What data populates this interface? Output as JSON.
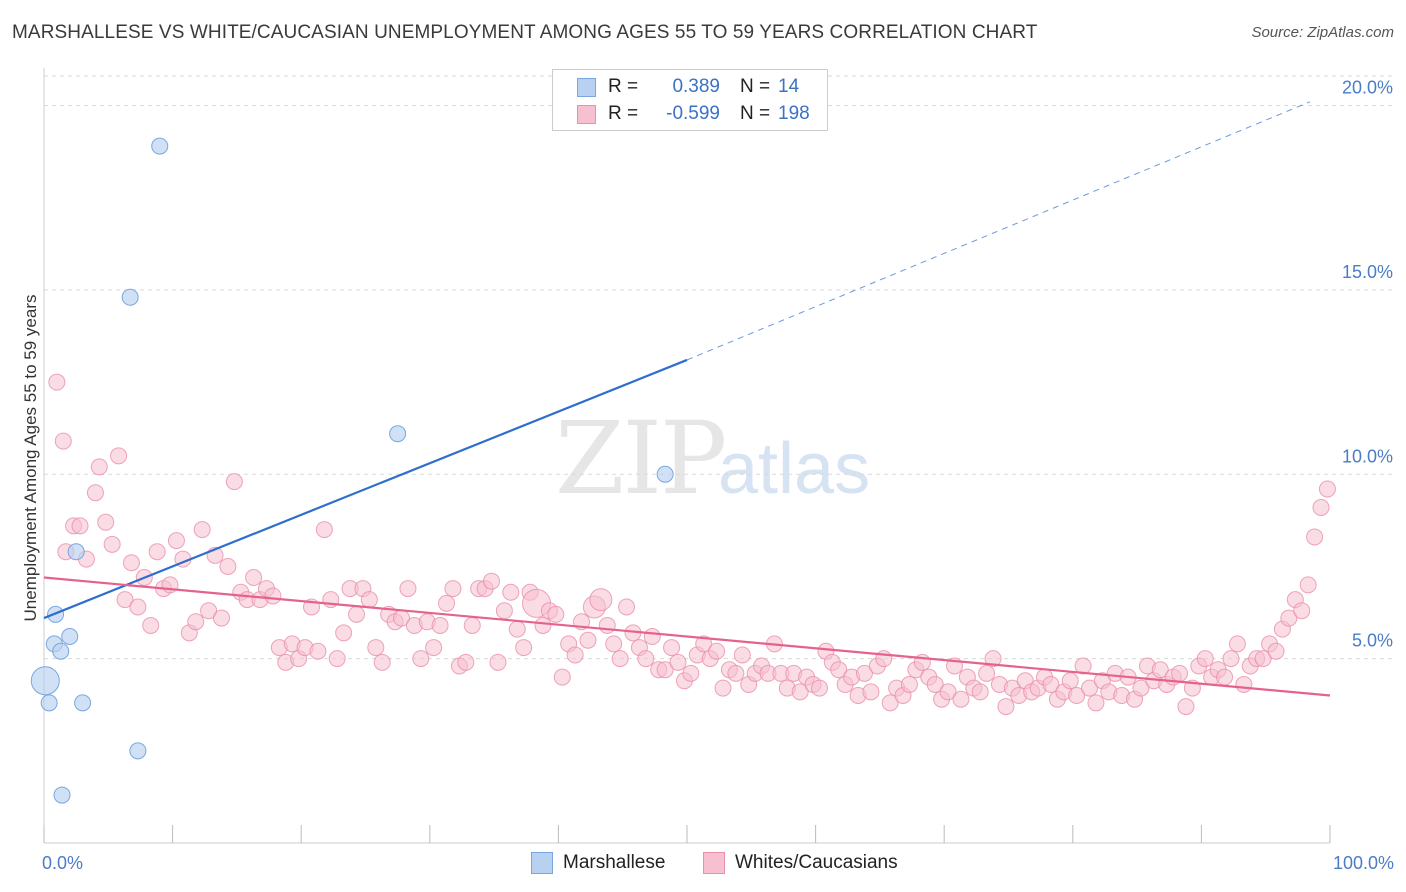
{
  "title": "MARSHALLESE VS WHITE/CAUCASIAN UNEMPLOYMENT AMONG AGES 55 TO 59 YEARS CORRELATION CHART",
  "source": "Source: ZipAtlas.com",
  "watermark": {
    "zip": "ZIP",
    "atlas": "atlas"
  },
  "legend": {
    "rows": [
      {
        "r_label": "R =",
        "r_value": "0.389",
        "n_label": "N =",
        "n_value": "14"
      },
      {
        "r_label": "R =",
        "r_value": "-0.599",
        "n_label": "N =",
        "n_value": "198"
      }
    ]
  },
  "bottom_legend": [
    "Marshallese",
    "Whites/Caucasians"
  ],
  "colors": {
    "blue_fill": "#b9d1f0",
    "blue_stroke": "#7aa6e0",
    "blue_line": "#2f6fcc",
    "pink_fill": "#f6c0d0",
    "pink_stroke": "#ea8fab",
    "pink_line": "#e5628d",
    "grid": "#d9d9d9",
    "tick_text": "#4a7cc7"
  },
  "chart_data": {
    "type": "scatter",
    "title": "MARSHALLESE VS WHITE/CAUCASIAN UNEMPLOYMENT AMONG AGES 55 TO 59 YEARS CORRELATION CHART",
    "xlabel": "",
    "ylabel": "Unemployment Among Ages 55 to 59 years",
    "xlim": [
      0,
      100
    ],
    "ylim": [
      0,
      20.8
    ],
    "x_tick_labels": [
      "0.0%",
      "100.0%"
    ],
    "y_ticks": [
      5,
      10,
      15,
      20
    ],
    "y_tick_labels": [
      "5.0%",
      "10.0%",
      "15.0%",
      "20.0%"
    ],
    "grid": "horizontal dashed",
    "legend_position": "top-center",
    "series": [
      {
        "name": "Marshallese",
        "r": 0.389,
        "n": 14,
        "trend": {
          "x0": 0,
          "y0": 6.1,
          "x1": 50,
          "y1": 13.1,
          "dashed_to_x": 100,
          "dashed_to_y": 20.1
        },
        "points": [
          [
            0.1,
            4.4,
            14
          ],
          [
            0.4,
            3.8,
            8
          ],
          [
            0.9,
            6.2,
            8
          ],
          [
            0.8,
            5.4,
            8
          ],
          [
            1.3,
            5.2,
            8
          ],
          [
            2.0,
            5.6,
            8
          ],
          [
            1.4,
            1.3,
            8
          ],
          [
            2.5,
            7.9,
            8
          ],
          [
            3.0,
            3.8,
            8
          ],
          [
            7.3,
            2.5,
            8
          ],
          [
            6.7,
            14.8,
            8
          ],
          [
            9.0,
            18.9,
            8
          ],
          [
            27.5,
            11.1,
            8
          ],
          [
            48.3,
            10.0,
            8
          ]
        ]
      },
      {
        "name": "Whites/Caucasians",
        "r": -0.599,
        "n": 198,
        "trend": {
          "x0": 0,
          "y0": 7.2,
          "x1": 100,
          "y1": 4.0
        },
        "points": [
          [
            1.0,
            12.5,
            8
          ],
          [
            1.5,
            10.9,
            8
          ],
          [
            1.7,
            7.9,
            8
          ],
          [
            2.3,
            8.6,
            8
          ],
          [
            2.8,
            8.6,
            8
          ],
          [
            3.3,
            7.7,
            8
          ],
          [
            4.0,
            9.5,
            8
          ],
          [
            4.3,
            10.2,
            8
          ],
          [
            4.8,
            8.7,
            8
          ],
          [
            5.3,
            8.1,
            8
          ],
          [
            5.8,
            10.5,
            8
          ],
          [
            6.3,
            6.6,
            8
          ],
          [
            6.8,
            7.6,
            8
          ],
          [
            7.3,
            6.4,
            8
          ],
          [
            7.8,
            7.2,
            8
          ],
          [
            8.3,
            5.9,
            8
          ],
          [
            8.8,
            7.9,
            8
          ],
          [
            9.3,
            6.9,
            8
          ],
          [
            9.8,
            7.0,
            8
          ],
          [
            10.3,
            8.2,
            8
          ],
          [
            10.8,
            7.7,
            8
          ],
          [
            11.3,
            5.7,
            8
          ],
          [
            11.8,
            6.0,
            8
          ],
          [
            12.3,
            8.5,
            8
          ],
          [
            12.8,
            6.3,
            8
          ],
          [
            13.3,
            7.8,
            8
          ],
          [
            13.8,
            6.1,
            8
          ],
          [
            14.3,
            7.5,
            8
          ],
          [
            14.8,
            9.8,
            8
          ],
          [
            15.3,
            6.8,
            8
          ],
          [
            15.8,
            6.6,
            8
          ],
          [
            16.3,
            7.2,
            8
          ],
          [
            16.8,
            6.6,
            8
          ],
          [
            17.3,
            6.9,
            8
          ],
          [
            17.8,
            6.7,
            8
          ],
          [
            18.3,
            5.3,
            8
          ],
          [
            18.8,
            4.9,
            8
          ],
          [
            19.3,
            5.4,
            8
          ],
          [
            19.8,
            5.0,
            8
          ],
          [
            20.3,
            5.3,
            8
          ],
          [
            20.8,
            6.4,
            8
          ],
          [
            21.3,
            5.2,
            8
          ],
          [
            21.8,
            8.5,
            8
          ],
          [
            22.3,
            6.6,
            8
          ],
          [
            22.8,
            5.0,
            8
          ],
          [
            23.3,
            5.7,
            8
          ],
          [
            23.8,
            6.9,
            8
          ],
          [
            24.3,
            6.2,
            8
          ],
          [
            24.8,
            6.9,
            8
          ],
          [
            25.3,
            6.6,
            8
          ],
          [
            25.8,
            5.3,
            8
          ],
          [
            26.3,
            4.9,
            8
          ],
          [
            26.8,
            6.2,
            8
          ],
          [
            27.3,
            6.0,
            8
          ],
          [
            27.8,
            6.1,
            8
          ],
          [
            28.3,
            6.9,
            8
          ],
          [
            28.8,
            5.9,
            8
          ],
          [
            29.3,
            5.0,
            8
          ],
          [
            29.8,
            6.0,
            8
          ],
          [
            30.3,
            5.3,
            8
          ],
          [
            30.8,
            5.9,
            8
          ],
          [
            31.3,
            6.5,
            8
          ],
          [
            31.8,
            6.9,
            8
          ],
          [
            32.3,
            4.8,
            8
          ],
          [
            32.8,
            4.9,
            8
          ],
          [
            33.3,
            5.9,
            8
          ],
          [
            33.8,
            6.9,
            8
          ],
          [
            34.3,
            6.9,
            8
          ],
          [
            34.8,
            7.1,
            8
          ],
          [
            35.3,
            4.9,
            8
          ],
          [
            35.8,
            6.3,
            8
          ],
          [
            36.3,
            6.8,
            8
          ],
          [
            36.8,
            5.8,
            8
          ],
          [
            37.3,
            5.3,
            8
          ],
          [
            37.8,
            6.8,
            8
          ],
          [
            38.3,
            6.5,
            14
          ],
          [
            38.8,
            5.9,
            8
          ],
          [
            39.3,
            6.3,
            8
          ],
          [
            39.8,
            6.2,
            8
          ],
          [
            40.3,
            4.5,
            8
          ],
          [
            40.8,
            5.4,
            8
          ],
          [
            41.3,
            5.1,
            8
          ],
          [
            41.8,
            6.0,
            8
          ],
          [
            42.3,
            5.5,
            8
          ],
          [
            42.8,
            6.4,
            11
          ],
          [
            43.3,
            6.6,
            11
          ],
          [
            43.8,
            5.9,
            8
          ],
          [
            44.3,
            5.4,
            8
          ],
          [
            44.8,
            5.0,
            8
          ],
          [
            45.3,
            6.4,
            8
          ],
          [
            45.8,
            5.7,
            8
          ],
          [
            46.3,
            5.3,
            8
          ],
          [
            46.8,
            5.0,
            8
          ],
          [
            47.3,
            5.6,
            8
          ],
          [
            47.8,
            4.7,
            8
          ],
          [
            48.3,
            4.7,
            8
          ],
          [
            48.8,
            5.3,
            8
          ],
          [
            49.3,
            4.9,
            8
          ],
          [
            49.8,
            4.4,
            8
          ],
          [
            50.3,
            4.6,
            8
          ],
          [
            50.8,
            5.1,
            8
          ],
          [
            51.3,
            5.4,
            8
          ],
          [
            51.8,
            5.0,
            8
          ],
          [
            52.3,
            5.2,
            8
          ],
          [
            52.8,
            4.2,
            8
          ],
          [
            53.3,
            4.7,
            8
          ],
          [
            53.8,
            4.6,
            8
          ],
          [
            54.3,
            5.1,
            8
          ],
          [
            54.8,
            4.3,
            8
          ],
          [
            55.3,
            4.6,
            8
          ],
          [
            55.8,
            4.8,
            8
          ],
          [
            56.3,
            4.6,
            8
          ],
          [
            56.8,
            5.4,
            8
          ],
          [
            57.3,
            4.6,
            8
          ],
          [
            57.8,
            4.2,
            8
          ],
          [
            58.3,
            4.6,
            8
          ],
          [
            58.8,
            4.1,
            8
          ],
          [
            59.3,
            4.5,
            8
          ],
          [
            59.8,
            4.3,
            8
          ],
          [
            60.3,
            4.2,
            8
          ],
          [
            60.8,
            5.2,
            8
          ],
          [
            61.3,
            4.9,
            8
          ],
          [
            61.8,
            4.7,
            8
          ],
          [
            62.3,
            4.3,
            8
          ],
          [
            62.8,
            4.5,
            8
          ],
          [
            63.3,
            4.0,
            8
          ],
          [
            63.8,
            4.6,
            8
          ],
          [
            64.3,
            4.1,
            8
          ],
          [
            64.8,
            4.8,
            8
          ],
          [
            65.3,
            5.0,
            8
          ],
          [
            65.8,
            3.8,
            8
          ],
          [
            66.3,
            4.2,
            8
          ],
          [
            66.8,
            4.0,
            8
          ],
          [
            67.3,
            4.3,
            8
          ],
          [
            67.8,
            4.7,
            8
          ],
          [
            68.3,
            4.9,
            8
          ],
          [
            68.8,
            4.5,
            8
          ],
          [
            69.3,
            4.3,
            8
          ],
          [
            69.8,
            3.9,
            8
          ],
          [
            70.3,
            4.1,
            8
          ],
          [
            70.8,
            4.8,
            8
          ],
          [
            71.3,
            3.9,
            8
          ],
          [
            71.8,
            4.5,
            8
          ],
          [
            72.3,
            4.2,
            8
          ],
          [
            72.8,
            4.1,
            8
          ],
          [
            73.3,
            4.6,
            8
          ],
          [
            73.8,
            5.0,
            8
          ],
          [
            74.3,
            4.3,
            8
          ],
          [
            74.8,
            3.7,
            8
          ],
          [
            75.3,
            4.2,
            8
          ],
          [
            75.8,
            4.0,
            8
          ],
          [
            76.3,
            4.4,
            8
          ],
          [
            76.8,
            4.1,
            8
          ],
          [
            77.3,
            4.2,
            8
          ],
          [
            77.8,
            4.5,
            8
          ],
          [
            78.3,
            4.3,
            8
          ],
          [
            78.8,
            3.9,
            8
          ],
          [
            79.3,
            4.1,
            8
          ],
          [
            79.8,
            4.4,
            8
          ],
          [
            80.3,
            4.0,
            8
          ],
          [
            80.8,
            4.8,
            8
          ],
          [
            81.3,
            4.2,
            8
          ],
          [
            81.8,
            3.8,
            8
          ],
          [
            82.3,
            4.4,
            8
          ],
          [
            82.8,
            4.1,
            8
          ],
          [
            83.3,
            4.6,
            8
          ],
          [
            83.8,
            4.0,
            8
          ],
          [
            84.3,
            4.5,
            8
          ],
          [
            84.8,
            3.9,
            8
          ],
          [
            85.3,
            4.2,
            8
          ],
          [
            85.8,
            4.8,
            8
          ],
          [
            86.3,
            4.4,
            8
          ],
          [
            86.8,
            4.7,
            8
          ],
          [
            87.3,
            4.3,
            8
          ],
          [
            87.8,
            4.5,
            8
          ],
          [
            88.3,
            4.6,
            8
          ],
          [
            88.8,
            3.7,
            8
          ],
          [
            89.3,
            4.2,
            8
          ],
          [
            89.8,
            4.8,
            8
          ],
          [
            90.3,
            5.0,
            8
          ],
          [
            90.8,
            4.5,
            8
          ],
          [
            91.3,
            4.7,
            8
          ],
          [
            91.8,
            4.5,
            8
          ],
          [
            92.3,
            5.0,
            8
          ],
          [
            92.8,
            5.4,
            8
          ],
          [
            93.3,
            4.3,
            8
          ],
          [
            93.8,
            4.8,
            8
          ],
          [
            94.3,
            5.0,
            8
          ],
          [
            94.8,
            5.0,
            8
          ],
          [
            95.3,
            5.4,
            8
          ],
          [
            95.8,
            5.2,
            8
          ],
          [
            96.3,
            5.8,
            8
          ],
          [
            96.8,
            6.1,
            8
          ],
          [
            97.3,
            6.6,
            8
          ],
          [
            97.8,
            6.3,
            8
          ],
          [
            98.3,
            7.0,
            8
          ],
          [
            98.8,
            8.3,
            8
          ],
          [
            99.3,
            9.1,
            8
          ],
          [
            99.8,
            9.6,
            8
          ]
        ]
      }
    ]
  }
}
